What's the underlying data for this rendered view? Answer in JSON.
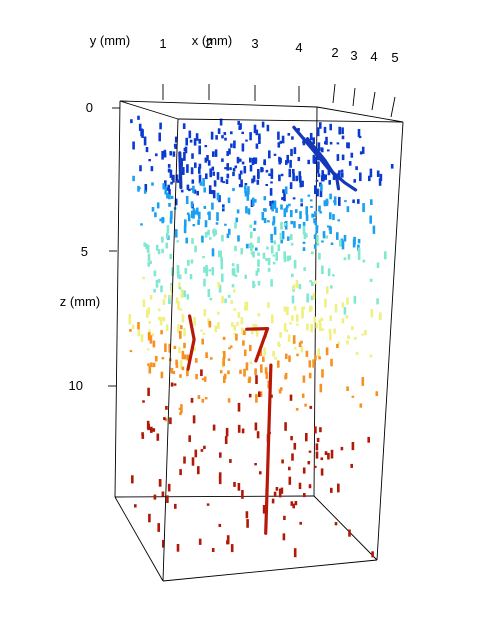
{
  "chart_data": {
    "type": "scatter",
    "projection": "3d-perspective",
    "title": "",
    "axes": {
      "x": {
        "label": "x (mm)",
        "ticks": [
          "1",
          "2",
          "3",
          "4"
        ],
        "range": [
          0.5,
          4.6
        ]
      },
      "y": {
        "label": "y (mm)",
        "ticks": [
          "2",
          "3",
          "4",
          "5"
        ],
        "range": [
          1.5,
          5.2
        ]
      },
      "z": {
        "label": "z (mm)",
        "ticks": [
          "0",
          "5",
          "10"
        ],
        "range": [
          0,
          15
        ],
        "direction": "down"
      }
    },
    "color_scale": [
      "#0a2fb0",
      "#1560e0",
      "#25a8f0",
      "#6ee0e0",
      "#a8f0b0",
      "#f0f08a",
      "#f8c040",
      "#ef7a10",
      "#c02010",
      "#a00c08"
    ],
    "color_by": "z",
    "lines": [
      {
        "color": "#1538b8",
        "points": [
          [
            2.8,
            2.0,
            0.3
          ],
          [
            3.2,
            2.2,
            1.0
          ],
          [
            3.7,
            2.6,
            1.8
          ],
          [
            4.2,
            3.0,
            2.4
          ],
          [
            4.5,
            3.2,
            2.7
          ]
        ]
      },
      {
        "color": "#1538b8",
        "points": [
          [
            3.1,
            2.1,
            0.7
          ],
          [
            3.8,
            3.0,
            1.6
          ],
          [
            4.3,
            3.6,
            2.4
          ],
          [
            4.6,
            4.2,
            2.9
          ]
        ]
      },
      {
        "color": "#1538b8",
        "points": [
          [
            0.7,
            2.0,
            1.2
          ],
          [
            0.8,
            2.2,
            2.4
          ]
        ]
      },
      {
        "color": "#b81808",
        "points": [
          [
            3.0,
            3.3,
            9.0
          ],
          [
            3.0,
            3.3,
            10.5
          ],
          [
            3.0,
            3.3,
            12.0
          ],
          [
            3.0,
            3.3,
            14.0
          ],
          [
            3.0,
            3.3,
            15.0
          ]
        ]
      },
      {
        "color": "#b81808",
        "points": [
          [
            1.1,
            2.4,
            6.8
          ],
          [
            1.2,
            2.4,
            7.6
          ],
          [
            1.1,
            2.4,
            8.6
          ]
        ]
      },
      {
        "color": "#b81808",
        "points": [
          [
            2.2,
            2.4,
            7.3
          ],
          [
            2.6,
            2.4,
            7.3
          ],
          [
            2.4,
            2.4,
            8.4
          ]
        ]
      }
    ],
    "points_note": "",
    "bands": [
      {
        "z_from": 0.5,
        "z_to": 3.0,
        "color": "#0a3ad0",
        "count": 260
      },
      {
        "z_from": 2.8,
        "z_to": 4.5,
        "color": "#1aa0f0",
        "count": 160
      },
      {
        "z_from": 4.5,
        "z_to": 6.5,
        "color": "#80e8d0",
        "count": 140
      },
      {
        "z_from": 6.5,
        "z_to": 8.3,
        "color": "#f0f080",
        "count": 130
      },
      {
        "z_from": 8.3,
        "z_to": 10.0,
        "color": "#f79020",
        "count": 110
      },
      {
        "z_from": 10.0,
        "z_to": 15.0,
        "color": "#b01808",
        "count": 120
      }
    ]
  }
}
